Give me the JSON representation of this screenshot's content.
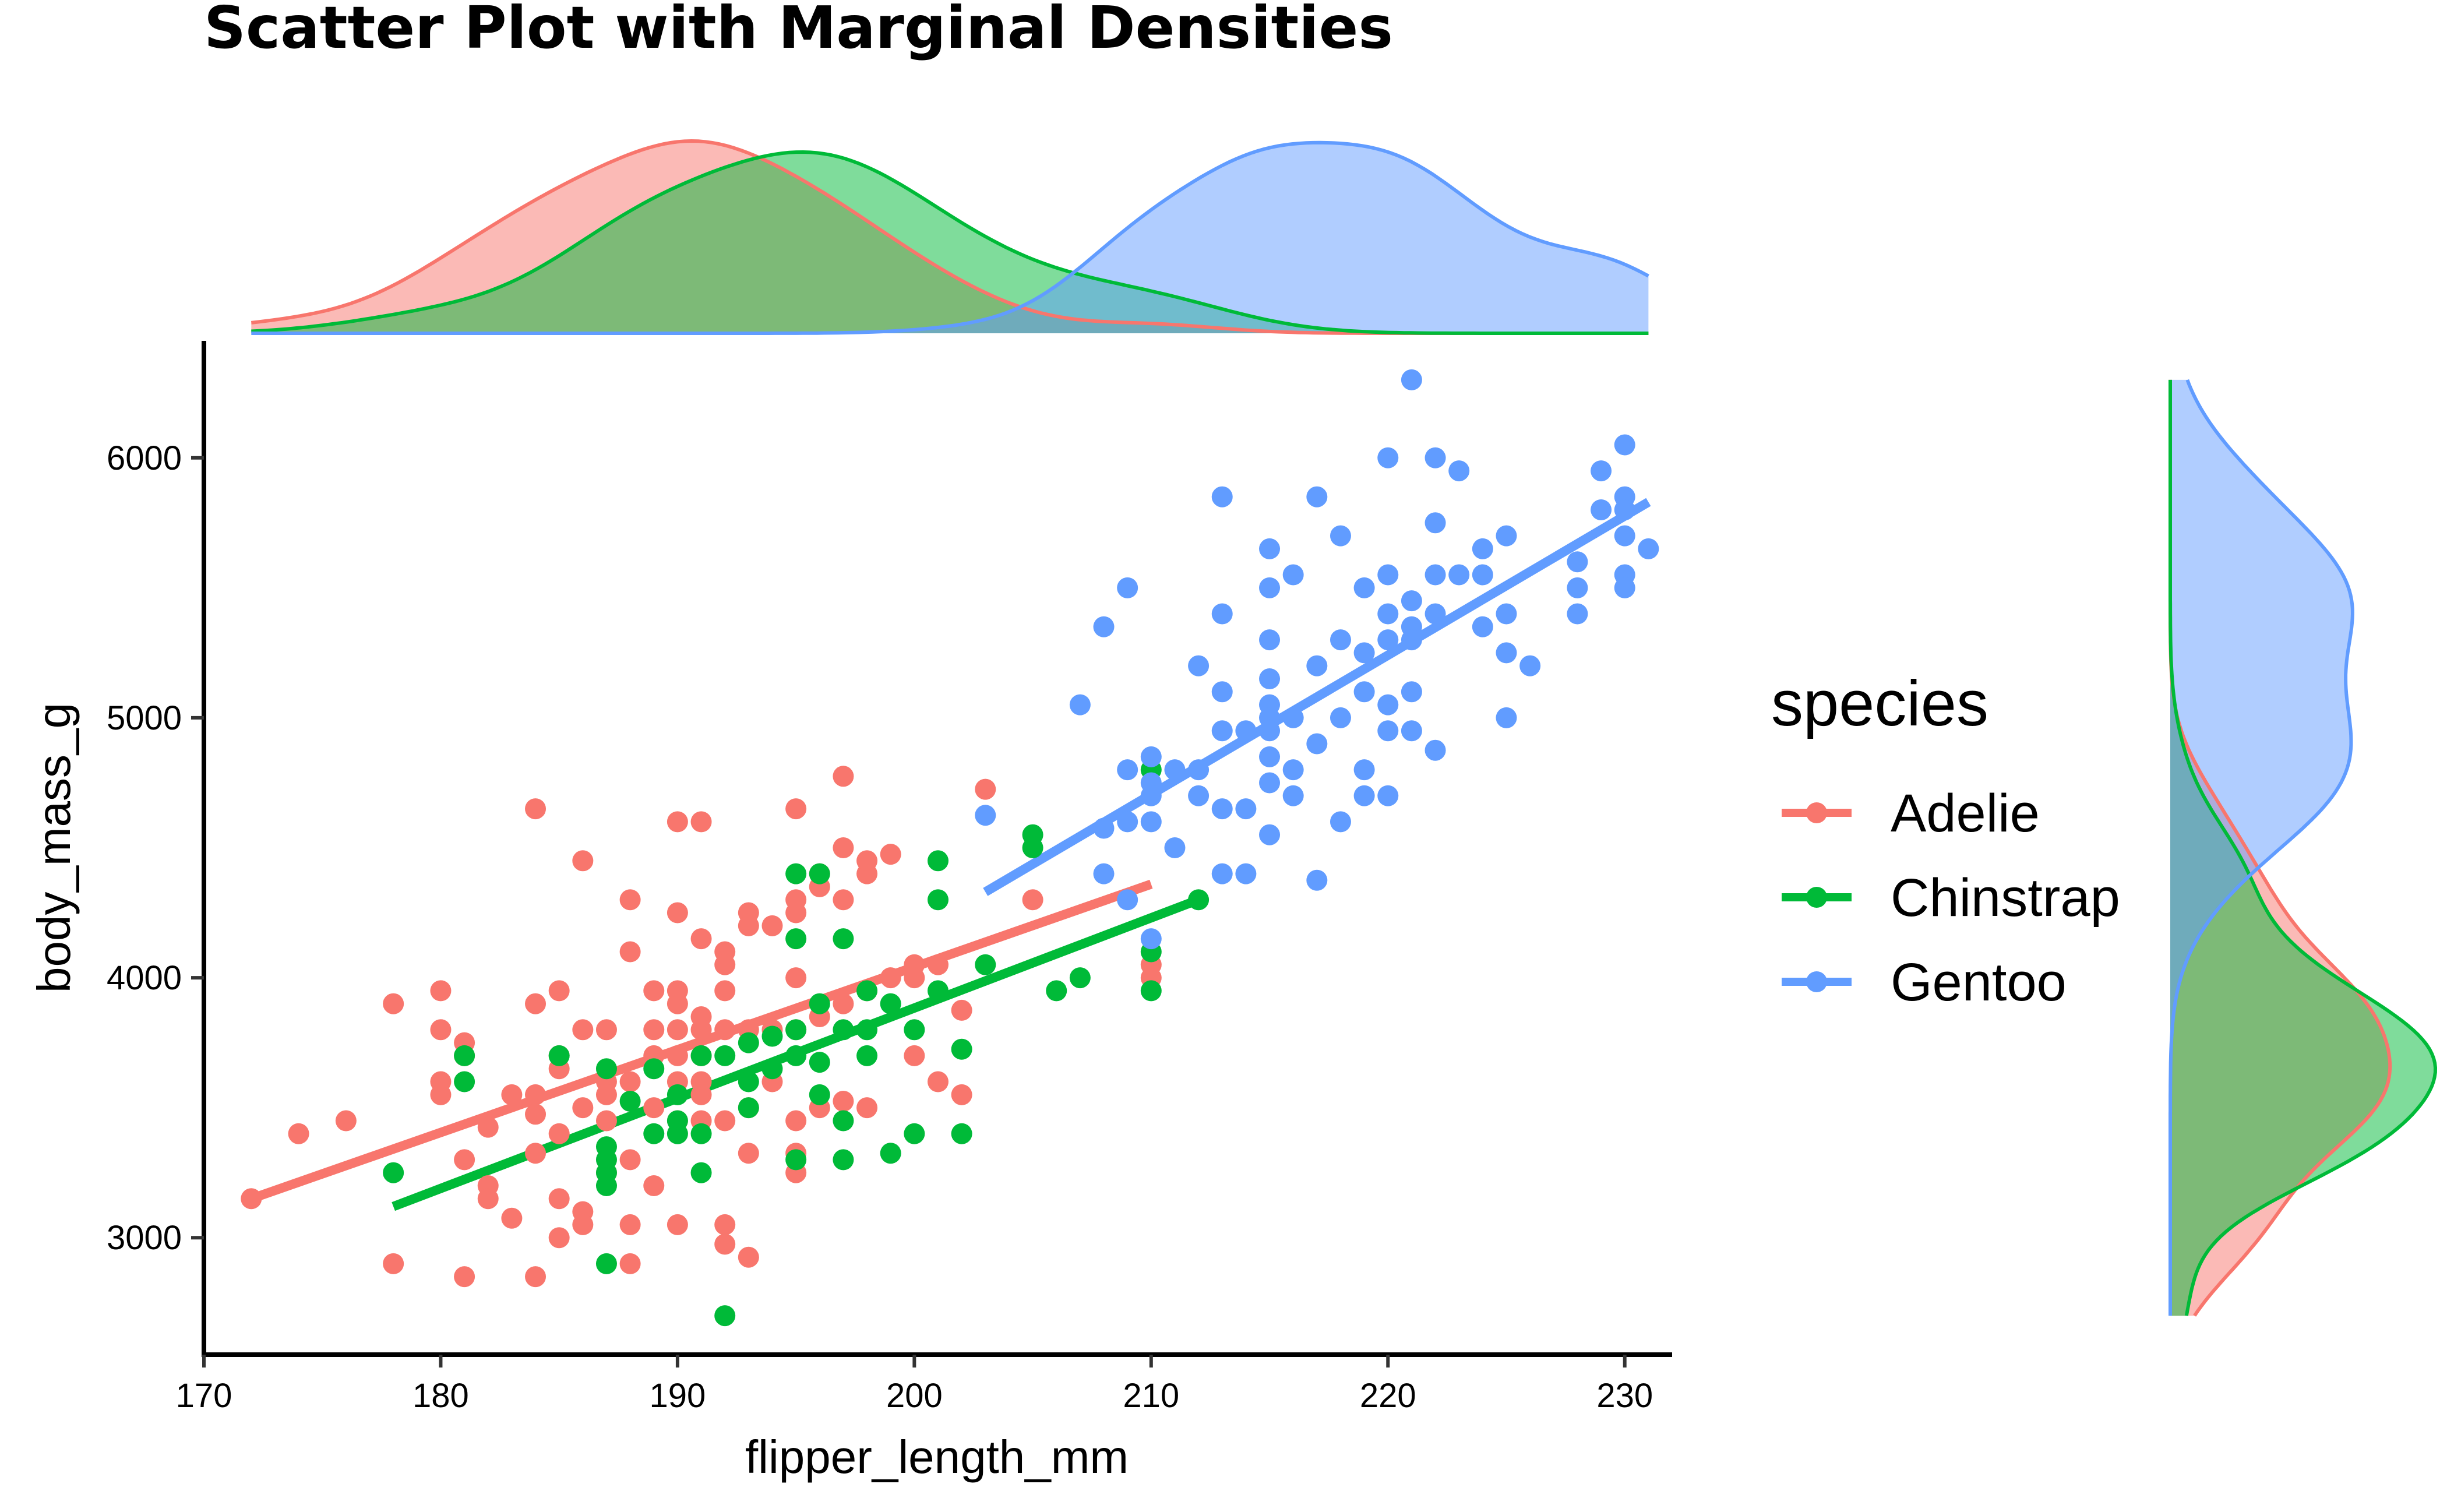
{
  "chart_data": {
    "type": "scatter",
    "title": "Scatter Plot with Marginal Densities",
    "xlabel": "flipper_length_mm",
    "ylabel": "body_mass_g",
    "xlim": [
      170,
      232
    ],
    "ylim": [
      2550,
      6450
    ],
    "xticks": [
      170,
      180,
      190,
      200,
      210,
      220,
      230
    ],
    "yticks": [
      3000,
      4000,
      5000,
      6000
    ],
    "grid": false,
    "legend": {
      "title": "species",
      "position": "right"
    },
    "marginals": {
      "top": "density of flipper_length_mm by species",
      "right": "density of body_mass_g by species"
    },
    "series": [
      {
        "name": "Adelie",
        "color": "#F8766D",
        "fit": {
          "x": [
            172,
            210
          ],
          "y": [
            3150,
            4360
          ]
        },
        "points": [
          [
            172,
            3150
          ],
          [
            174,
            3400
          ],
          [
            176,
            3450
          ],
          [
            178,
            3900
          ],
          [
            178,
            2900
          ],
          [
            180,
            3950
          ],
          [
            180,
            3800
          ],
          [
            180,
            3600
          ],
          [
            180,
            3550
          ],
          [
            181,
            3750
          ],
          [
            181,
            3700
          ],
          [
            181,
            3300
          ],
          [
            181,
            2850
          ],
          [
            182,
            3200
          ],
          [
            182,
            3150
          ],
          [
            182,
            3425
          ],
          [
            183,
            3550
          ],
          [
            183,
            3075
          ],
          [
            184,
            4650
          ],
          [
            184,
            3900
          ],
          [
            184,
            3550
          ],
          [
            184,
            3475
          ],
          [
            184,
            3325
          ],
          [
            184,
            2850
          ],
          [
            185,
            3950
          ],
          [
            185,
            3700
          ],
          [
            185,
            3650
          ],
          [
            185,
            3400
          ],
          [
            185,
            3150
          ],
          [
            185,
            3000
          ],
          [
            186,
            4450
          ],
          [
            186,
            3800
          ],
          [
            186,
            3500
          ],
          [
            186,
            3100
          ],
          [
            186,
            3050
          ],
          [
            187,
            3800
          ],
          [
            187,
            3600
          ],
          [
            187,
            3550
          ],
          [
            187,
            3450
          ],
          [
            187,
            3250
          ],
          [
            188,
            4300
          ],
          [
            188,
            4100
          ],
          [
            188,
            3600
          ],
          [
            188,
            3300
          ],
          [
            188,
            3050
          ],
          [
            188,
            2900
          ],
          [
            189,
            3950
          ],
          [
            189,
            3800
          ],
          [
            189,
            3700
          ],
          [
            189,
            3500
          ],
          [
            189,
            3200
          ],
          [
            190,
            4600
          ],
          [
            190,
            4250
          ],
          [
            190,
            3950
          ],
          [
            190,
            3900
          ],
          [
            190,
            3800
          ],
          [
            190,
            3700
          ],
          [
            190,
            3600
          ],
          [
            190,
            3450
          ],
          [
            190,
            3050
          ],
          [
            191,
            4600
          ],
          [
            191,
            4150
          ],
          [
            191,
            3850
          ],
          [
            191,
            3800
          ],
          [
            191,
            3700
          ],
          [
            191,
            3600
          ],
          [
            191,
            3550
          ],
          [
            191,
            3450
          ],
          [
            192,
            4100
          ],
          [
            192,
            4050
          ],
          [
            192,
            3950
          ],
          [
            192,
            3800
          ],
          [
            192,
            3450
          ],
          [
            192,
            3050
          ],
          [
            192,
            2975
          ],
          [
            193,
            4250
          ],
          [
            193,
            4200
          ],
          [
            193,
            3800
          ],
          [
            193,
            3500
          ],
          [
            193,
            3325
          ],
          [
            193,
            2925
          ],
          [
            194,
            4200
          ],
          [
            194,
            3800
          ],
          [
            194,
            3600
          ],
          [
            195,
            4650
          ],
          [
            195,
            4300
          ],
          [
            195,
            4250
          ],
          [
            195,
            4000
          ],
          [
            195,
            3800
          ],
          [
            195,
            3450
          ],
          [
            195,
            3325
          ],
          [
            195,
            3250
          ],
          [
            196,
            4400
          ],
          [
            196,
            4350
          ],
          [
            196,
            3850
          ],
          [
            196,
            3500
          ],
          [
            197,
            4775
          ],
          [
            197,
            4500
          ],
          [
            197,
            4300
          ],
          [
            197,
            3900
          ],
          [
            197,
            3525
          ],
          [
            198,
            4400
          ],
          [
            198,
            4450
          ],
          [
            198,
            3950
          ],
          [
            198,
            3500
          ],
          [
            199,
            4475
          ],
          [
            199,
            4000
          ],
          [
            200,
            4050
          ],
          [
            200,
            4000
          ],
          [
            200,
            3700
          ],
          [
            201,
            4050
          ],
          [
            201,
            3600
          ],
          [
            202,
            3875
          ],
          [
            202,
            3550
          ],
          [
            203,
            4725
          ],
          [
            205,
            4300
          ],
          [
            210,
            4000
          ],
          [
            210,
            4050
          ]
        ]
      },
      {
        "name": "Chinstrap",
        "color": "#00BA38",
        "fit": {
          "x": [
            178,
            212
          ],
          "y": [
            3120,
            4300
          ]
        },
        "points": [
          [
            178,
            3250
          ],
          [
            181,
            3700
          ],
          [
            181,
            3600
          ],
          [
            185,
            3700
          ],
          [
            187,
            3650
          ],
          [
            187,
            3350
          ],
          [
            187,
            3300
          ],
          [
            187,
            3250
          ],
          [
            187,
            3200
          ],
          [
            187,
            2900
          ],
          [
            188,
            3525
          ],
          [
            189,
            3650
          ],
          [
            189,
            3400
          ],
          [
            190,
            3550
          ],
          [
            190,
            3450
          ],
          [
            190,
            3400
          ],
          [
            191,
            3700
          ],
          [
            191,
            3400
          ],
          [
            191,
            3250
          ],
          [
            192,
            3700
          ],
          [
            192,
            2700
          ],
          [
            193,
            3750
          ],
          [
            193,
            3600
          ],
          [
            193,
            3500
          ],
          [
            194,
            3775
          ],
          [
            194,
            3650
          ],
          [
            195,
            4400
          ],
          [
            195,
            4150
          ],
          [
            195,
            3800
          ],
          [
            195,
            3700
          ],
          [
            195,
            3300
          ],
          [
            196,
            4400
          ],
          [
            196,
            3900
          ],
          [
            196,
            3675
          ],
          [
            196,
            3550
          ],
          [
            197,
            4150
          ],
          [
            197,
            3800
          ],
          [
            197,
            3450
          ],
          [
            197,
            3300
          ],
          [
            198,
            3950
          ],
          [
            198,
            3800
          ],
          [
            198,
            3700
          ],
          [
            199,
            3900
          ],
          [
            199,
            3325
          ],
          [
            200,
            3800
          ],
          [
            200,
            3400
          ],
          [
            201,
            4450
          ],
          [
            201,
            4300
          ],
          [
            201,
            3950
          ],
          [
            202,
            3725
          ],
          [
            202,
            3400
          ],
          [
            203,
            4050
          ],
          [
            205,
            4550
          ],
          [
            205,
            4500
          ],
          [
            206,
            3950
          ],
          [
            207,
            4000
          ],
          [
            210,
            4800
          ],
          [
            210,
            4100
          ],
          [
            210,
            3950
          ],
          [
            212,
            4300
          ]
        ]
      },
      {
        "name": "Gentoo",
        "color": "#619CFF",
        "fit": {
          "x": [
            203,
            231
          ],
          "y": [
            4330,
            5830
          ]
        },
        "points": [
          [
            203,
            4625
          ],
          [
            207,
            5050
          ],
          [
            208,
            5350
          ],
          [
            208,
            4575
          ],
          [
            208,
            4400
          ],
          [
            209,
            5500
          ],
          [
            209,
            4800
          ],
          [
            209,
            4600
          ],
          [
            209,
            4300
          ],
          [
            210,
            4850
          ],
          [
            210,
            4750
          ],
          [
            210,
            4700
          ],
          [
            210,
            4600
          ],
          [
            210,
            4150
          ],
          [
            211,
            4800
          ],
          [
            211,
            4500
          ],
          [
            212,
            5200
          ],
          [
            212,
            4700
          ],
          [
            212,
            4800
          ],
          [
            213,
            5850
          ],
          [
            213,
            5400
          ],
          [
            213,
            5100
          ],
          [
            213,
            4950
          ],
          [
            213,
            4650
          ],
          [
            213,
            4400
          ],
          [
            214,
            4950
          ],
          [
            214,
            4650
          ],
          [
            214,
            4400
          ],
          [
            215,
            5650
          ],
          [
            215,
            5500
          ],
          [
            215,
            5300
          ],
          [
            215,
            5150
          ],
          [
            215,
            5050
          ],
          [
            215,
            5000
          ],
          [
            215,
            4950
          ],
          [
            215,
            4850
          ],
          [
            215,
            4750
          ],
          [
            215,
            4550
          ],
          [
            216,
            5550
          ],
          [
            216,
            5000
          ],
          [
            216,
            4800
          ],
          [
            216,
            4700
          ],
          [
            217,
            5850
          ],
          [
            217,
            5200
          ],
          [
            217,
            4900
          ],
          [
            217,
            4375
          ],
          [
            218,
            5700
          ],
          [
            218,
            5300
          ],
          [
            218,
            5000
          ],
          [
            218,
            4600
          ],
          [
            219,
            5500
          ],
          [
            219,
            5250
          ],
          [
            219,
            5100
          ],
          [
            219,
            4800
          ],
          [
            219,
            4700
          ],
          [
            220,
            6000
          ],
          [
            220,
            5550
          ],
          [
            220,
            5400
          ],
          [
            220,
            5300
          ],
          [
            220,
            5050
          ],
          [
            220,
            4950
          ],
          [
            220,
            4700
          ],
          [
            221,
            6300
          ],
          [
            221,
            5450
          ],
          [
            221,
            5350
          ],
          [
            221,
            5300
          ],
          [
            221,
            5100
          ],
          [
            221,
            4950
          ],
          [
            222,
            6000
          ],
          [
            222,
            5750
          ],
          [
            222,
            5550
          ],
          [
            222,
            5400
          ],
          [
            222,
            4875
          ],
          [
            223,
            5950
          ],
          [
            223,
            5550
          ],
          [
            224,
            5650
          ],
          [
            224,
            5550
          ],
          [
            224,
            5350
          ],
          [
            225,
            5700
          ],
          [
            225,
            5400
          ],
          [
            225,
            5250
          ],
          [
            225,
            5000
          ],
          [
            226,
            5200
          ],
          [
            228,
            5600
          ],
          [
            228,
            5500
          ],
          [
            228,
            5400
          ],
          [
            229,
            5950
          ],
          [
            229,
            5800
          ],
          [
            230,
            6050
          ],
          [
            230,
            5850
          ],
          [
            230,
            5800
          ],
          [
            230,
            5700
          ],
          [
            230,
            5550
          ],
          [
            230,
            5500
          ],
          [
            231,
            5650
          ]
        ]
      }
    ]
  }
}
